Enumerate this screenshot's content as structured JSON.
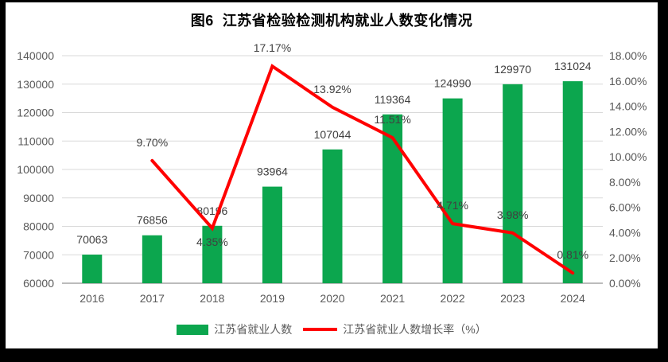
{
  "title": "图6  江苏省检验检测机构就业人数变化情况",
  "frame": {
    "background": "#000000",
    "panel_background": "#FFFFFF"
  },
  "colors": {
    "bar": "#0CA64E",
    "line": "#FF0000",
    "gridline": "#D9D9D9",
    "axis_line": "#A6A6A6",
    "tick_text": "#595959",
    "data_label_text": "#404040",
    "title_text": "#000000"
  },
  "chart_data": {
    "type": "bar+line combo",
    "title": "图6  江苏省检验检测机构就业人数变化情况",
    "categories": [
      "2016",
      "2017",
      "2018",
      "2019",
      "2020",
      "2021",
      "2022",
      "2023",
      "2024"
    ],
    "series": [
      {
        "name": "江苏省就业人数",
        "type": "bar",
        "axis": "left",
        "color": "#0CA64E",
        "values": [
          70063,
          76856,
          80196,
          93964,
          107044,
          119364,
          124990,
          129970,
          131024
        ],
        "data_labels": [
          "70063",
          "76856",
          "80196",
          "93964",
          "107044",
          "119364",
          "124990",
          "129970",
          "131024"
        ]
      },
      {
        "name": "江苏省就业人数增长率（%）",
        "type": "line",
        "axis": "right",
        "color": "#FF0000",
        "values": [
          null,
          9.7,
          4.35,
          17.17,
          13.92,
          11.51,
          4.71,
          3.98,
          0.81
        ],
        "data_labels": [
          null,
          "9.70%",
          "4.35%",
          "17.17%",
          "13.92%",
          "11.51%",
          "4.71%",
          "3.98%",
          "0.81%"
        ],
        "label_sides": [
          null,
          "above",
          "below",
          "above",
          "above",
          "above",
          "above",
          "above",
          "above"
        ]
      }
    ],
    "left_axis": {
      "min": 60000,
      "max": 140000,
      "step": 10000,
      "tick_labels": [
        "60000",
        "70000",
        "80000",
        "90000",
        "100000",
        "110000",
        "120000",
        "130000",
        "140000"
      ]
    },
    "right_axis": {
      "min": 0,
      "max": 18,
      "step": 2,
      "tick_labels": [
        "0.00%",
        "2.00%",
        "4.00%",
        "6.00%",
        "8.00%",
        "10.00%",
        "12.00%",
        "14.00%",
        "16.00%",
        "18.00%"
      ]
    },
    "grid": true,
    "legend_position": "bottom"
  }
}
